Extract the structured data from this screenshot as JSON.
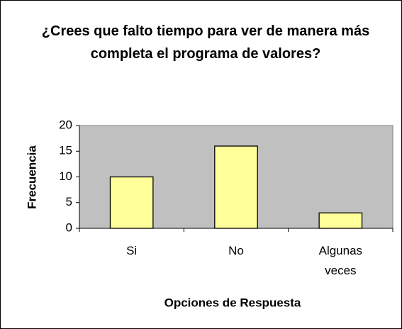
{
  "chart_data": {
    "type": "bar",
    "title": "¿Crees que falto tiempo para ver de manera más completa el programa de valores?",
    "categories": [
      "Si",
      "No",
      "Algunas veces"
    ],
    "values": [
      10,
      16,
      3
    ],
    "color": "#ffff99",
    "plot_background": "#c0c0c0",
    "ylim": [
      0,
      20
    ],
    "yticks": [
      0,
      5,
      10,
      15,
      20
    ],
    "grid": false,
    "xlabel": "Opciones de Respuesta",
    "ylabel": "Frecuencia"
  }
}
